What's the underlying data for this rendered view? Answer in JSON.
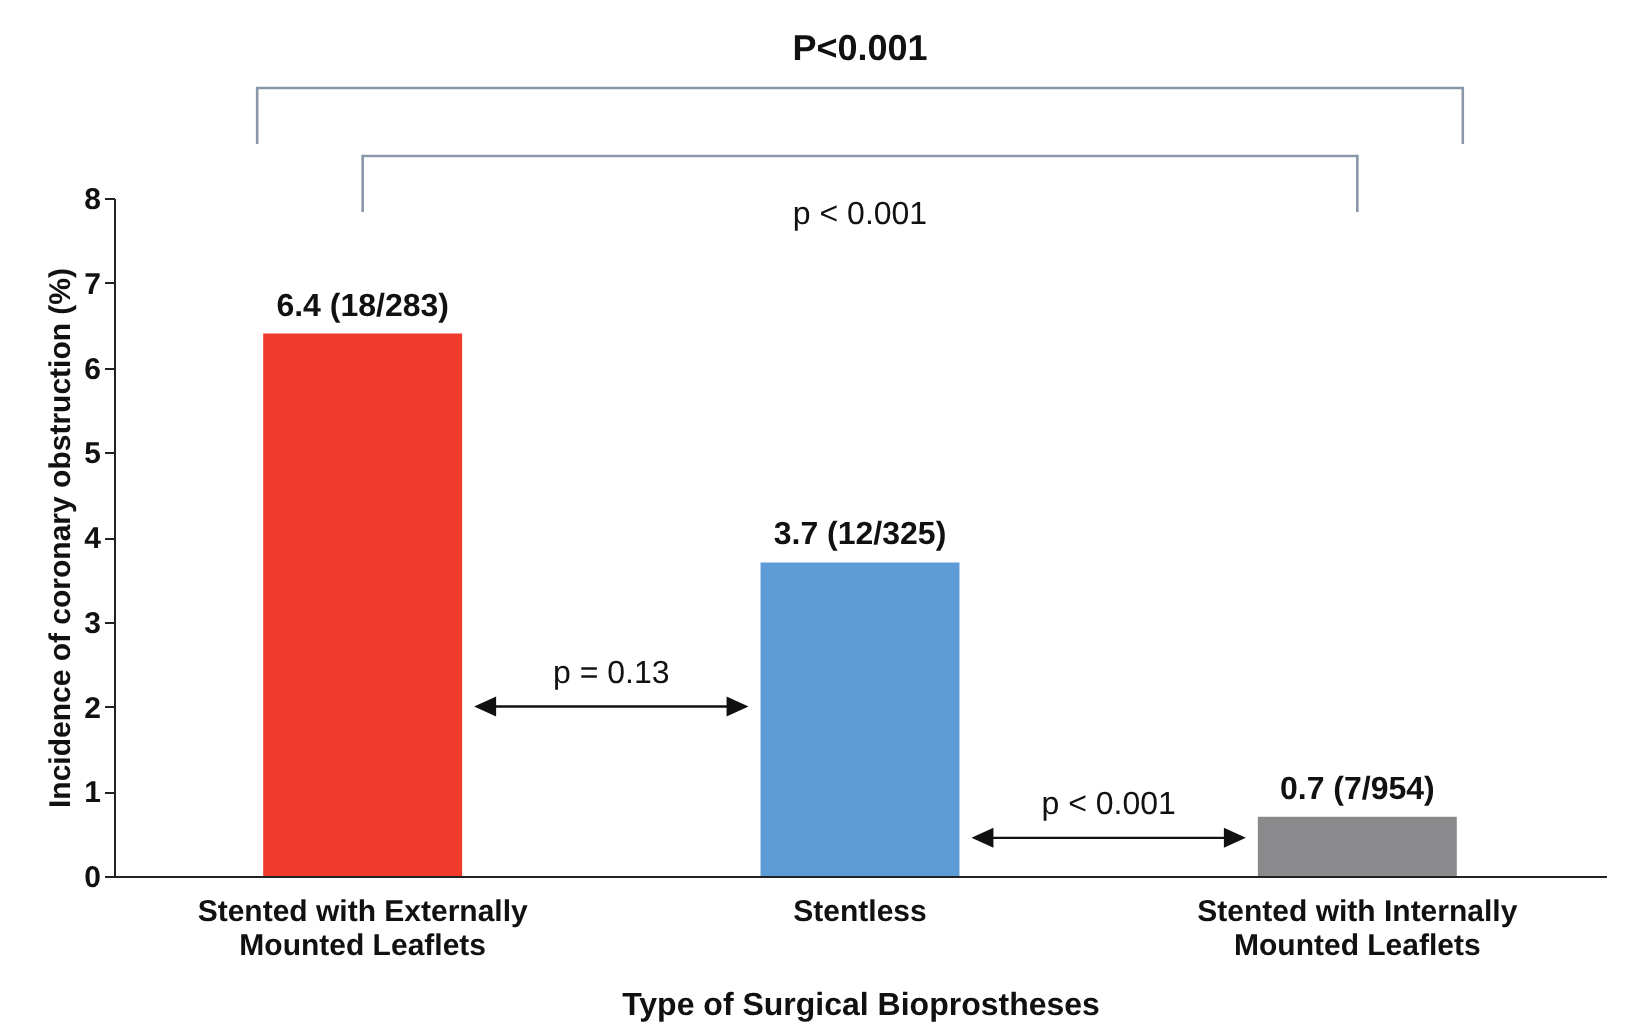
{
  "chart_data": {
    "type": "bar",
    "xlabel": "Type of Surgical Bioprostheses",
    "ylabel": "Incidence of coronary obstruction (%)",
    "categories": [
      "Stented with Externally Mounted Leaflets",
      "Stentless",
      "Stented with Internally Mounted Leaflets"
    ],
    "values": [
      6.4,
      3.7,
      0.7
    ],
    "colors": [
      "#ee3b2b",
      "#5d9bd6",
      "#8a8a8c"
    ],
    "value_labels": [
      "6.4 (18/283)",
      "3.7 (12/325)",
      "0.7 (7/954)"
    ],
    "ylim": [
      0,
      8
    ],
    "yticks": [
      0,
      1,
      2,
      3,
      4,
      5,
      6,
      7,
      8
    ],
    "grid": false,
    "annotations": [
      "P<0.001",
      "p < 0.001",
      "p = 0.13",
      "p < 0.001"
    ]
  }
}
